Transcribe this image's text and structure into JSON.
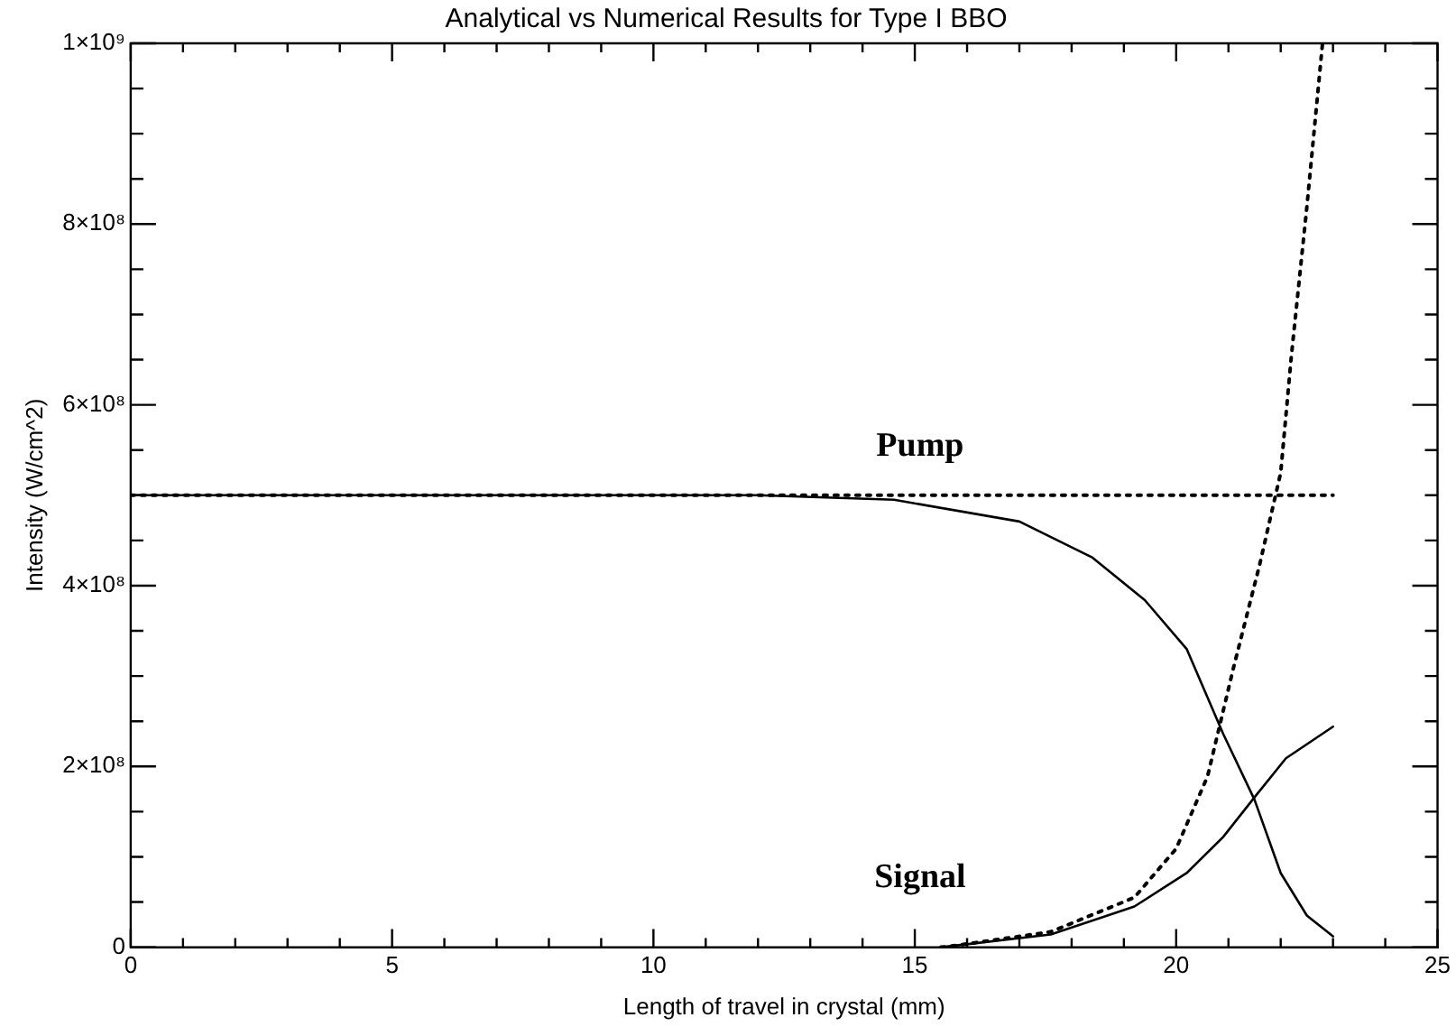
{
  "chart_data": {
    "type": "line",
    "title": "Analytical vs Numerical Results for Type I BBO",
    "xlabel": "Length of travel in crystal (mm)",
    "ylabel": "Intensity (W/cm^2)",
    "xlim": [
      0,
      25
    ],
    "ylim": [
      0,
      1000000000
    ],
    "xticks": [
      0,
      {
        "value": 1,
        "label": null
      },
      {
        "value": 2,
        "label": null
      },
      {
        "value": 3,
        "label": null
      },
      {
        "value": 4,
        "label": null
      },
      5,
      {
        "value": 6,
        "label": null
      },
      {
        "value": 7,
        "label": null
      },
      {
        "value": 8,
        "label": null
      },
      {
        "value": 9,
        "label": null
      },
      10,
      {
        "value": 11,
        "label": null
      },
      {
        "value": 12,
        "label": null
      },
      {
        "value": 13,
        "label": null
      },
      {
        "value": 14,
        "label": null
      },
      15,
      {
        "value": 16,
        "label": null
      },
      {
        "value": 17,
        "label": null
      },
      {
        "value": 18,
        "label": null
      },
      {
        "value": 19,
        "label": null
      },
      20,
      {
        "value": 21,
        "label": null
      },
      {
        "value": 22,
        "label": null
      },
      {
        "value": 23,
        "label": null
      },
      {
        "value": 24,
        "label": null
      },
      25
    ],
    "yticks": [
      0,
      {
        "value": 50000000,
        "label": null
      },
      {
        "value": 100000000,
        "label": null
      },
      {
        "value": 150000000,
        "label": null
      },
      {
        "value": 200000000,
        "label": "2×10⁸"
      },
      {
        "value": 250000000,
        "label": null
      },
      {
        "value": 300000000,
        "label": null
      },
      {
        "value": 350000000,
        "label": null
      },
      {
        "value": 400000000,
        "label": "4×10⁸"
      },
      {
        "value": 450000000,
        "label": null
      },
      {
        "value": 500000000,
        "label": null
      },
      {
        "value": 550000000,
        "label": null
      },
      {
        "value": 600000000,
        "label": "6×10⁸"
      },
      {
        "value": 650000000,
        "label": null
      },
      {
        "value": 700000000,
        "label": null
      },
      {
        "value": 750000000,
        "label": null
      },
      {
        "value": 800000000,
        "label": "8×10⁸"
      },
      {
        "value": 850000000,
        "label": null
      },
      {
        "value": 900000000,
        "label": null
      },
      {
        "value": 950000000,
        "label": null
      },
      {
        "value": 1000000000,
        "label": "1×10⁹"
      }
    ],
    "grid": false,
    "legend": false,
    "marker": "none",
    "series": [
      {
        "color": "#000000",
        "line_style": "dotted",
        "x": [
          0,
          23
        ],
        "values": [
          500000000,
          500000000
        ]
      },
      {
        "color": "#000000",
        "line_style": "solid",
        "x": [
          0,
          12,
          14.6,
          17,
          18.4,
          19.4,
          20.2,
          20.9,
          21.5,
          22,
          22.5,
          23
        ],
        "values": [
          500000000,
          500000000,
          495000000,
          471000000,
          431000000,
          384000000,
          330000000,
          236000000,
          163000000,
          82000000,
          35000000,
          12000000
        ]
      },
      {
        "color": "#000000",
        "line_style": "dotted",
        "x": [
          15.5,
          15.8,
          17.6,
          19.2,
          20,
          20.6,
          21.1,
          21.6,
          22,
          22.2,
          22.5,
          22.8
        ],
        "values": [
          0,
          2000000,
          17000000,
          55000000,
          109000000,
          189000000,
          310000000,
          424000000,
          525000000,
          652000000,
          819000000,
          1000000000
        ]
      },
      {
        "color": "#000000",
        "line_style": "solid",
        "x": [
          15.5,
          15.8,
          17.6,
          19.2,
          20.2,
          20.9,
          21.5,
          22.1,
          23
        ],
        "values": [
          0,
          2000000,
          14000000,
          45000000,
          82000000,
          122000000,
          166000000,
          209000000,
          244000000
        ]
      }
    ],
    "annotations": [
      "Pump",
      "Signal"
    ]
  }
}
